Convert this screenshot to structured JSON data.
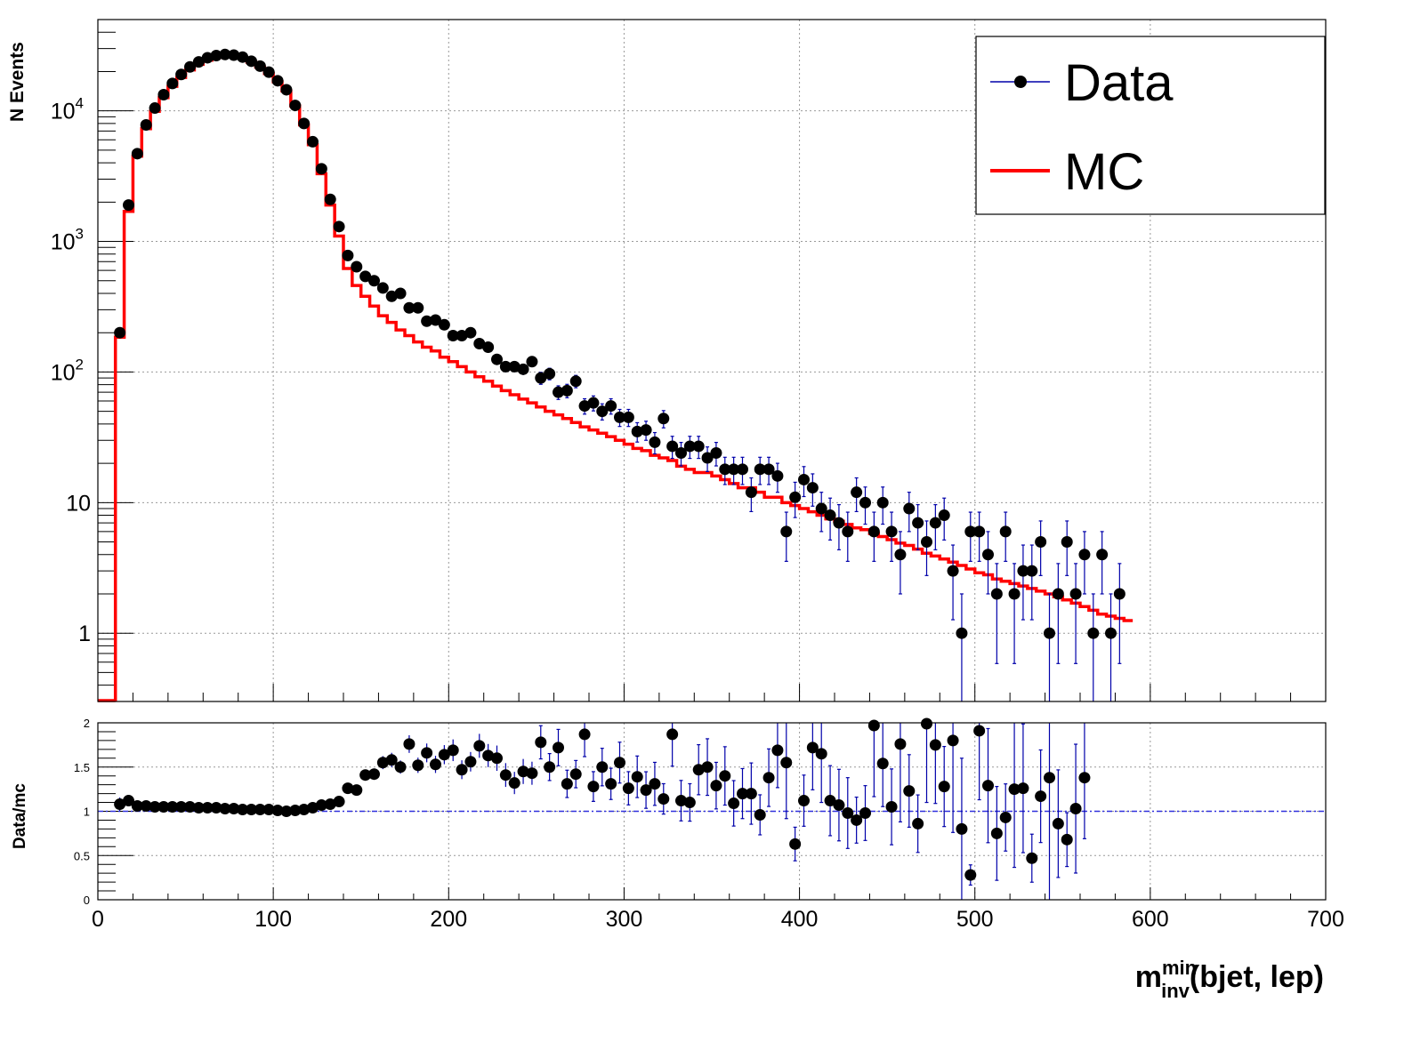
{
  "chart_data": [
    {
      "type": "scatter",
      "panel": "main",
      "xlabel": "",
      "ylabel": "N Events",
      "xlim": [
        0,
        700
      ],
      "ylim": [
        0.3,
        50000
      ],
      "yscale": "log",
      "grid": true,
      "legend": {
        "placement": "top-right",
        "entries": [
          "Data",
          "MC"
        ]
      },
      "y_tick_labels": [
        "1",
        "10",
        "10",
        "10",
        "10"
      ],
      "y_tick_exponents": [
        "",
        "",
        "2",
        "3",
        "4"
      ],
      "x_bins": {
        "start": 10,
        "width": 5
      },
      "series": [
        {
          "name": "Data",
          "style": "points-with-errors",
          "color": "#000000",
          "error_color": "#0000aa",
          "values": [
            200,
            1900,
            4700,
            7800,
            10500,
            13300,
            16200,
            19000,
            21700,
            23700,
            25500,
            26500,
            27000,
            26700,
            25800,
            24000,
            22000,
            19800,
            17000,
            14500,
            11000,
            8000,
            5800,
            3600,
            2100,
            1300,
            780,
            640,
            540,
            500,
            440,
            380,
            400,
            310,
            310,
            245,
            250,
            230,
            190,
            190,
            200,
            165,
            155,
            125,
            110,
            110,
            105,
            120,
            90,
            97,
            70,
            72,
            85,
            55,
            58,
            50,
            55,
            45,
            45,
            35,
            36,
            29,
            44,
            27,
            24,
            27,
            27,
            22,
            24,
            18,
            18,
            18,
            12,
            18,
            18,
            16,
            6,
            11,
            15,
            13,
            9,
            8,
            7,
            6,
            12,
            10,
            6,
            10,
            6,
            4,
            9,
            7,
            5,
            7,
            8,
            3,
            1,
            6,
            6,
            4,
            2,
            6,
            2,
            3,
            3,
            5,
            1,
            2,
            5,
            2,
            4,
            1,
            4,
            1,
            2
          ]
        },
        {
          "name": "MC",
          "style": "step",
          "color": "#ff0000",
          "values": [
            185,
            1700,
            4500,
            7300,
            9900,
            12600,
            15400,
            18000,
            20600,
            22700,
            24400,
            25700,
            26400,
            26300,
            25400,
            23600,
            21600,
            19300,
            16700,
            14200,
            10900,
            7800,
            5500,
            3300,
            1900,
            1100,
            620,
            460,
            380,
            320,
            270,
            240,
            210,
            190,
            170,
            155,
            145,
            130,
            120,
            110,
            100,
            92,
            85,
            78,
            72,
            67,
            62,
            58,
            54,
            50,
            47,
            44,
            41,
            38,
            36,
            34,
            32,
            30,
            28,
            26,
            25,
            23,
            22,
            21,
            19,
            18,
            17,
            17,
            16,
            15,
            14,
            13,
            13,
            12,
            11,
            11,
            10,
            9.5,
            9,
            8.5,
            8,
            7.5,
            7.2,
            6.8,
            6.4,
            6.2,
            5.8,
            5.5,
            5.2,
            4.9,
            4.7,
            4.4,
            4.1,
            3.9,
            3.7,
            3.5,
            3.3,
            3.1,
            2.9,
            2.8,
            2.6,
            2.5,
            2.4,
            2.3,
            2.2,
            2.1,
            2.0,
            1.9,
            1.8,
            1.7,
            1.6,
            1.5,
            1.4,
            1.35,
            1.3,
            1.25
          ]
        }
      ]
    },
    {
      "type": "scatter",
      "panel": "ratio",
      "xlabel": "m",
      "xlabel_sup": "min",
      "xlabel_sub": "inv",
      "xlabel_rest": "(bjet, lep)",
      "ylabel": "Data/mc",
      "xlim": [
        0,
        700
      ],
      "ylim": [
        0,
        2
      ],
      "x_ticks": [
        0,
        100,
        200,
        300,
        400,
        500,
        600,
        700
      ],
      "y_ticks": [
        "0",
        "0.5",
        "1",
        "1.5",
        "2"
      ],
      "reference_line": 1,
      "grid": true,
      "series": [
        {
          "name": "Data/mc",
          "style": "points-with-errors",
          "color": "#000000",
          "values": [
            1.08,
            1.12,
            1.06,
            1.06,
            1.05,
            1.05,
            1.05,
            1.05,
            1.05,
            1.04,
            1.04,
            1.04,
            1.03,
            1.03,
            1.02,
            1.02,
            1.02,
            1.02,
            1.01,
            1.0,
            1.01,
            1.02,
            1.04,
            1.07,
            1.08,
            1.11,
            1.26,
            1.24,
            1.41,
            1.42,
            1.55,
            1.58,
            1.5,
            1.76,
            1.52,
            1.66,
            1.53,
            1.64,
            1.69,
            1.47,
            1.56,
            1.74,
            1.63,
            1.6,
            1.41,
            1.32,
            1.45,
            1.43,
            1.78,
            1.5,
            1.72,
            1.31,
            1.42,
            1.87,
            1.28,
            1.5,
            1.31,
            1.55,
            1.26,
            1.39,
            1.24,
            1.31,
            1.14,
            1.87,
            1.12,
            1.1,
            1.47,
            1.5,
            1.29,
            1.4,
            1.09,
            1.2,
            1.2,
            0.96,
            1.38,
            1.69,
            1.55,
            0.63,
            1.12,
            1.72,
            1.65,
            1.12,
            1.07,
            0.98,
            0.9,
            0.98,
            1.97,
            1.54,
            1.05,
            1.76,
            1.23,
            0.86,
            1.99,
            1.75,
            1.28,
            1.8,
            0.8,
            0.28,
            1.91,
            1.29,
            0.75,
            0.93,
            1.25,
            1.26,
            0.47,
            1.17,
            1.38,
            0.86,
            0.68,
            1.03,
            1.38
          ]
        }
      ]
    }
  ]
}
